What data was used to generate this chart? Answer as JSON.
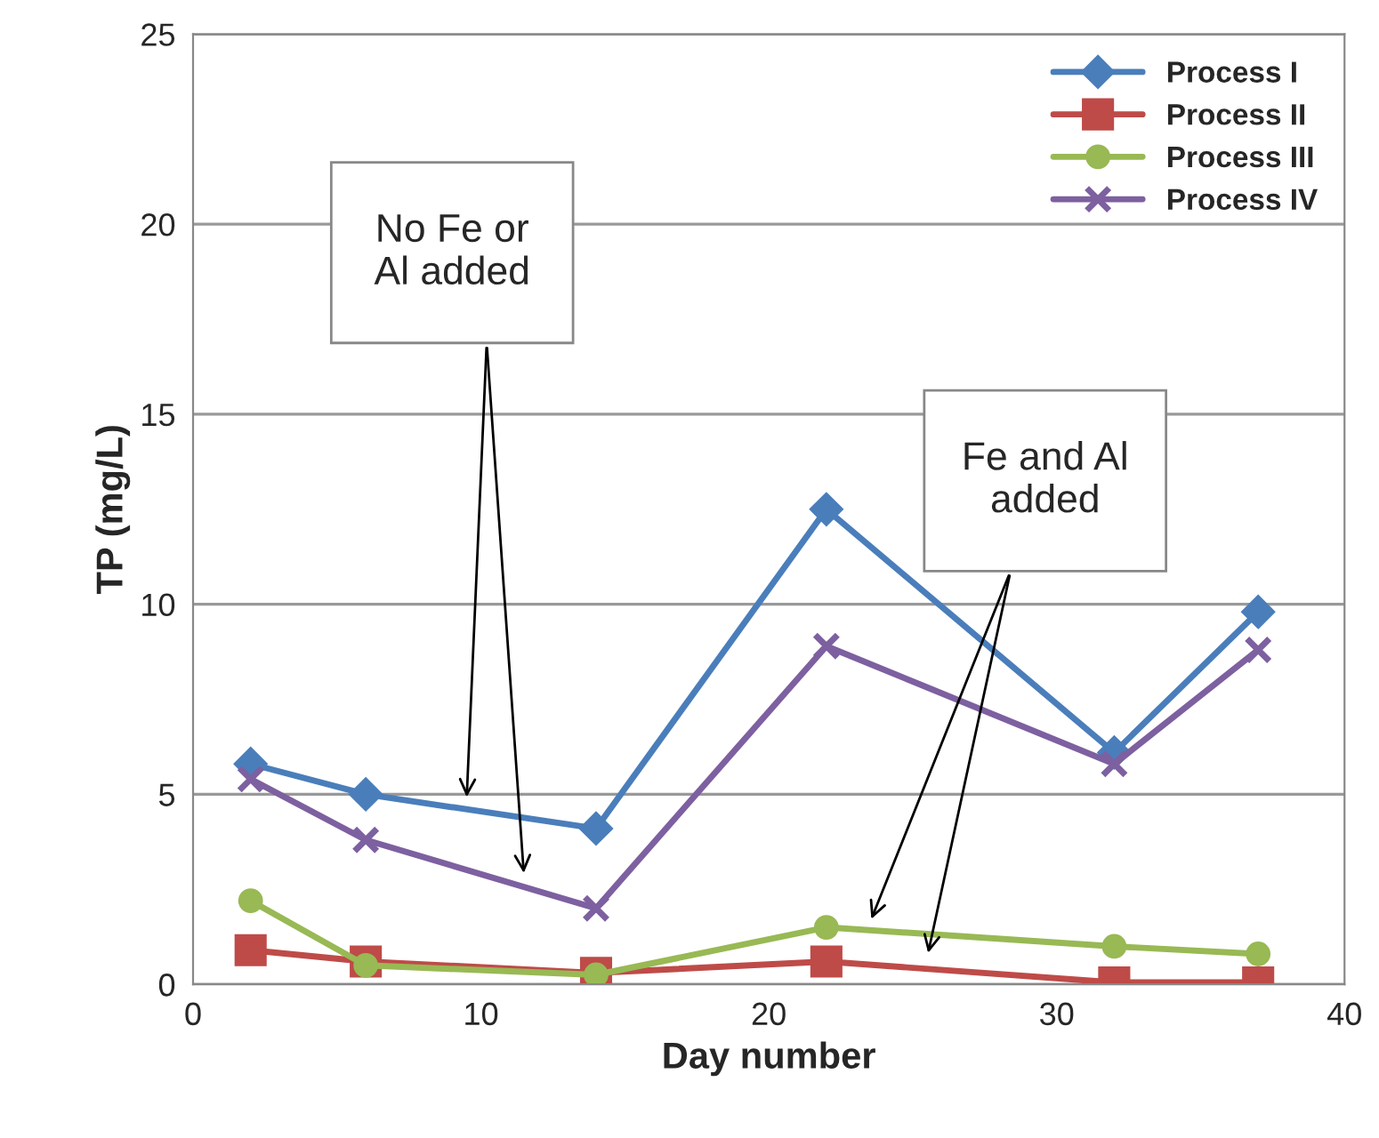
{
  "chart_data": {
    "type": "line",
    "xlabel": "Day number",
    "ylabel": "TP (mg/L)",
    "x": [
      2,
      6,
      14,
      22,
      32,
      37
    ],
    "series": [
      {
        "name": "Process I",
        "color": "#4a7ebb",
        "marker": "diamond",
        "values": [
          5.8,
          5.0,
          4.1,
          12.5,
          6.1,
          9.8
        ]
      },
      {
        "name": "Process II",
        "color": "#be4b48",
        "marker": "square",
        "values": [
          0.9,
          0.6,
          0.3,
          0.6,
          0.05,
          0.05
        ]
      },
      {
        "name": "Process III",
        "color": "#98b954",
        "marker": "circle",
        "values": [
          2.2,
          0.5,
          0.25,
          1.5,
          1.0,
          0.8
        ]
      },
      {
        "name": "Process IV",
        "color": "#7d60a0",
        "marker": "cross",
        "values": [
          5.4,
          3.8,
          2.0,
          8.9,
          5.8,
          8.8
        ]
      }
    ],
    "xlim": [
      0,
      40
    ],
    "xticks": [
      0,
      10,
      20,
      30,
      40
    ],
    "ylim": [
      0,
      25
    ],
    "yticks": [
      0,
      5,
      10,
      15,
      20,
      25
    ],
    "grid": "y",
    "legend": "top right",
    "line_style": "solid",
    "annotations": [
      "No Fe or\nAl added",
      "Fe and Al\nadded"
    ]
  }
}
